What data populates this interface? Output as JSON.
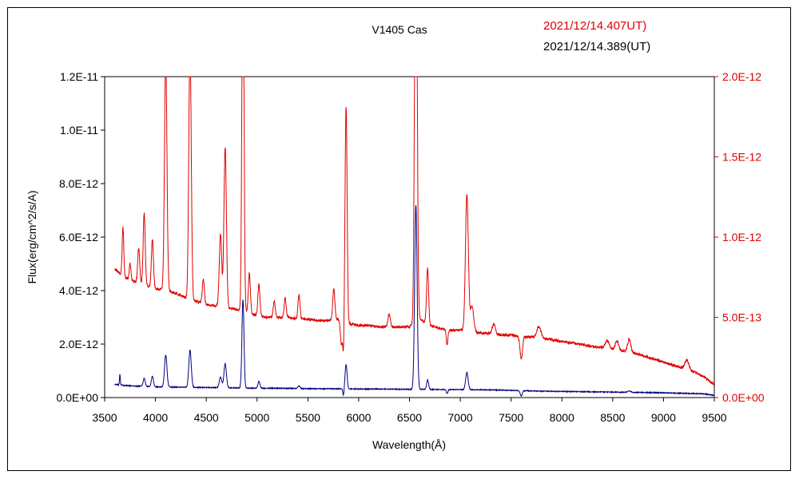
{
  "chart_data": {
    "type": "line",
    "title": "V1405 Cas",
    "xlabel": "Wavelength(Å)",
    "ylabel_left": "Flux(erg/cm^2/s/A)",
    "xlim": [
      3500,
      9500
    ],
    "ylim_left": [
      0,
      1.2e-11
    ],
    "ylim_right": [
      0,
      2e-12
    ],
    "x_ticks": [
      "3500",
      "4000",
      "4500",
      "5000",
      "5500",
      "6000",
      "6500",
      "7000",
      "7500",
      "8000",
      "8500",
      "9000",
      "9500"
    ],
    "y_left_ticks": [
      "0.0E+00",
      "2.0E-12",
      "4.0E-12",
      "6.0E-12",
      "8.0E-12",
      "1.0E-11",
      "1.2E-11"
    ],
    "y_right_ticks": [
      "0.0E+00",
      "5.0E-13",
      "1.0E-12",
      "1.5E-12",
      "2.0E-12"
    ],
    "grid": false,
    "legend_position": "top-right",
    "series": [
      {
        "name": "2021/12/14.407UT)",
        "axis": "right",
        "color": "#e00000",
        "continuum": [
          [
            3600,
            8e-13
          ],
          [
            3700,
            7.5e-13
          ],
          [
            3800,
            7.2e-13
          ],
          [
            3900,
            7e-13
          ],
          [
            4000,
            6.8e-13
          ],
          [
            4100,
            6.7e-13
          ],
          [
            4200,
            6.5e-13
          ],
          [
            4300,
            6.2e-13
          ],
          [
            4400,
            6e-13
          ],
          [
            4500,
            5.8e-13
          ],
          [
            4600,
            5.7e-13
          ],
          [
            4700,
            5.6e-13
          ],
          [
            4800,
            5.5e-13
          ],
          [
            4900,
            5.3e-13
          ],
          [
            5000,
            5.1e-13
          ],
          [
            5100,
            5e-13
          ],
          [
            5200,
            5e-13
          ],
          [
            5300,
            5e-13
          ],
          [
            5400,
            4.9e-13
          ],
          [
            5500,
            4.9e-13
          ],
          [
            5600,
            4.8e-13
          ],
          [
            5700,
            4.8e-13
          ],
          [
            5800,
            4.9e-13
          ],
          [
            5900,
            4.6e-13
          ],
          [
            6000,
            4.5e-13
          ],
          [
            6100,
            4.5e-13
          ],
          [
            6200,
            4.4e-13
          ],
          [
            6300,
            4.4e-13
          ],
          [
            6400,
            4.4e-13
          ],
          [
            6500,
            4.4e-13
          ],
          [
            6600,
            4.9e-13
          ],
          [
            6700,
            4.5e-13
          ],
          [
            6800,
            4.3e-13
          ],
          [
            6900,
            4.2e-13
          ],
          [
            7000,
            4.2e-13
          ],
          [
            7100,
            4.2e-13
          ],
          [
            7200,
            4e-13
          ],
          [
            7300,
            4e-13
          ],
          [
            7400,
            3.9e-13
          ],
          [
            7500,
            3.9e-13
          ],
          [
            7600,
            3.8e-13
          ],
          [
            7700,
            3.8e-13
          ],
          [
            7800,
            3.7e-13
          ],
          [
            7900,
            3.6e-13
          ],
          [
            8000,
            3.5e-13
          ],
          [
            8100,
            3.4e-13
          ],
          [
            8200,
            3.3e-13
          ],
          [
            8300,
            3.2e-13
          ],
          [
            8400,
            3.1e-13
          ],
          [
            8500,
            3e-13
          ],
          [
            8600,
            2.9e-13
          ],
          [
            8700,
            2.8e-13
          ],
          [
            8800,
            2.6e-13
          ],
          [
            8900,
            2.4e-13
          ],
          [
            9000,
            2.2e-13
          ],
          [
            9100,
            2e-13
          ],
          [
            9200,
            1.8e-13
          ],
          [
            9300,
            1.6e-13
          ],
          [
            9400,
            1.3e-13
          ],
          [
            9500,
            8e-14
          ]
        ],
        "lines": [
          [
            3680,
            3e-13,
            8
          ],
          [
            3750,
            1e-13,
            8
          ],
          [
            3835,
            2.2e-13,
            10
          ],
          [
            3889,
            4.5e-13,
            10
          ],
          [
            3970,
            3e-13,
            10
          ],
          [
            4101,
            1.45e-12,
            12
          ],
          [
            4340,
            1.6e-12,
            12
          ],
          [
            4471,
            1.5e-13,
            10
          ],
          [
            4640,
            4.5e-13,
            12
          ],
          [
            4686,
            1e-12,
            12
          ],
          [
            4861,
            2.5e-12,
            10
          ],
          [
            4924,
            2.5e-13,
            10
          ],
          [
            5018,
            2e-13,
            10
          ],
          [
            5169,
            1e-13,
            10
          ],
          [
            5276,
            1.2e-13,
            10
          ],
          [
            5412,
            1.5e-13,
            10
          ],
          [
            5755,
            2e-13,
            10
          ],
          [
            5876,
            1.35e-12,
            10
          ],
          [
            6300,
            8e-14,
            12
          ],
          [
            6563,
            3e-12,
            12
          ],
          [
            6678,
            3.5e-13,
            10
          ],
          [
            7065,
            8.5e-13,
            14
          ],
          [
            7115,
            1.5e-13,
            16
          ],
          [
            7330,
            6e-14,
            15
          ],
          [
            7774,
            7e-14,
            20
          ],
          [
            8446,
            5e-14,
            20
          ],
          [
            8542,
            6e-14,
            15
          ],
          [
            8662,
            8e-14,
            15
          ],
          [
            9229,
            6e-14,
            20
          ]
        ],
        "absorptions": [
          [
            5830,
            1.5e-13,
            10
          ],
          [
            5850,
            2e-13,
            6
          ],
          [
            6870,
            9e-14,
            8
          ],
          [
            7600,
            1.4e-13,
            12
          ]
        ],
        "noise": 8e-15
      },
      {
        "name": "2021/12/14.389(UT)",
        "axis": "left",
        "color": "#000080",
        "continuum": [
          [
            3600,
            5e-13
          ],
          [
            3700,
            4.5e-13
          ],
          [
            3800,
            4.3e-13
          ],
          [
            3900,
            4.2e-13
          ],
          [
            4000,
            4e-13
          ],
          [
            4200,
            3.9e-13
          ],
          [
            4400,
            3.8e-13
          ],
          [
            4600,
            3.7e-13
          ],
          [
            4800,
            3.6e-13
          ],
          [
            5000,
            3.5e-13
          ],
          [
            5200,
            3.5e-13
          ],
          [
            5400,
            3.4e-13
          ],
          [
            5600,
            3.3e-13
          ],
          [
            5800,
            3.3e-13
          ],
          [
            6000,
            3.2e-13
          ],
          [
            6200,
            3.2e-13
          ],
          [
            6400,
            3.1e-13
          ],
          [
            6600,
            3.1e-13
          ],
          [
            6800,
            3e-13
          ],
          [
            7000,
            3e-13
          ],
          [
            7200,
            2.9e-13
          ],
          [
            7400,
            2.8e-13
          ],
          [
            7600,
            2.6e-13
          ],
          [
            7800,
            2.4e-13
          ],
          [
            8000,
            2.3e-13
          ],
          [
            8200,
            2.2e-13
          ],
          [
            8400,
            2.1e-13
          ],
          [
            8600,
            2e-13
          ],
          [
            8800,
            1.9e-13
          ],
          [
            9000,
            1.8e-13
          ],
          [
            9200,
            1.6e-13
          ],
          [
            9400,
            1.4e-13
          ],
          [
            9500,
            8e-14
          ]
        ],
        "lines": [
          [
            3650,
            4e-13,
            4
          ],
          [
            3889,
            3e-13,
            10
          ],
          [
            3970,
            4e-13,
            10
          ],
          [
            4101,
            1.2e-12,
            12
          ],
          [
            4340,
            1.4e-12,
            12
          ],
          [
            4640,
            4e-13,
            12
          ],
          [
            4686,
            9e-13,
            12
          ],
          [
            4861,
            3.3e-12,
            10
          ],
          [
            5018,
            2.5e-13,
            10
          ],
          [
            5412,
            1e-13,
            10
          ],
          [
            5876,
            9e-13,
            10
          ],
          [
            6563,
            6.9e-12,
            12
          ],
          [
            6678,
            3.5e-13,
            10
          ],
          [
            7065,
            6.5e-13,
            12
          ],
          [
            8662,
            5e-14,
            15
          ]
        ],
        "absorptions": [
          [
            5850,
            2.5e-13,
            6
          ],
          [
            6870,
            1.5e-13,
            8
          ],
          [
            7600,
            2e-13,
            10
          ]
        ],
        "noise": 1.5e-14
      }
    ]
  }
}
